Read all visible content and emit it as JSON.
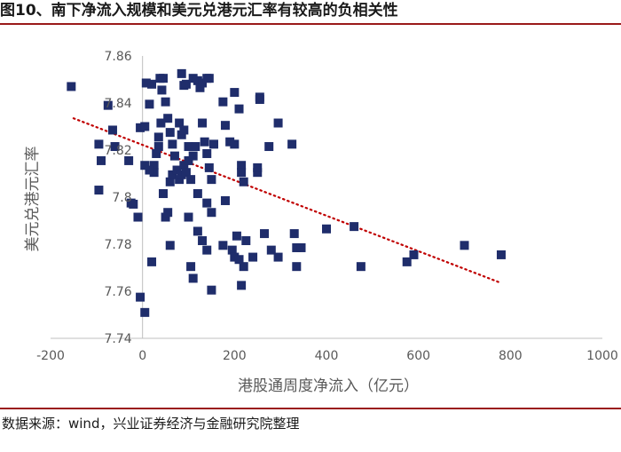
{
  "title": "图10、南下净流入规模和美元兑港元汇率有较高的负相关性",
  "source": "数据来源：wind，兴业证券经济与金融研究院整理",
  "colors": {
    "marker": "#1f2d6b",
    "trend": "#c00000",
    "axis": "#bfbfbf",
    "accent": "#9a1a1a"
  },
  "chart_data": {
    "type": "scatter",
    "xlabel": "港股通周度净流入（亿元）",
    "ylabel": "美元兑港元汇率",
    "xlim": [
      -200,
      1000
    ],
    "ylim": [
      7.74,
      7.86
    ],
    "x_ticks": [
      "-200",
      "0",
      "200",
      "400",
      "600",
      "800",
      "1000"
    ],
    "y_ticks": [
      "7.74",
      "7.76",
      "7.78",
      "7.8",
      "7.82",
      "7.84",
      "7.86"
    ],
    "trendline": {
      "style": "dotted",
      "x": [
        -150,
        780
      ],
      "y": [
        7.8335,
        7.7635
      ]
    },
    "points": [
      [
        -155,
        7.847
      ],
      [
        -95,
        7.8225
      ],
      [
        -90,
        7.8155
      ],
      [
        -75,
        7.839
      ],
      [
        -65,
        7.8285
      ],
      [
        -60,
        7.8215
      ],
      [
        -30,
        7.8155
      ],
      [
        -95,
        7.803
      ],
      [
        -25,
        7.7975
      ],
      [
        -20,
        7.797
      ],
      [
        -10,
        7.7915
      ],
      [
        -5,
        7.7575
      ],
      [
        5,
        7.751
      ],
      [
        -5,
        7.8295
      ],
      [
        5,
        7.83
      ],
      [
        8,
        7.8485
      ],
      [
        15,
        7.8395
      ],
      [
        20,
        7.848
      ],
      [
        25,
        7.8135
      ],
      [
        35,
        7.8255
      ],
      [
        38,
        7.8505
      ],
      [
        42,
        7.8455
      ],
      [
        45,
        7.8505
      ],
      [
        50,
        7.8405
      ],
      [
        55,
        7.8335
      ],
      [
        60,
        7.8275
      ],
      [
        65,
        7.8225
      ],
      [
        70,
        7.8175
      ],
      [
        40,
        7.8315
      ],
      [
        35,
        7.8215
      ],
      [
        30,
        7.8185
      ],
      [
        25,
        7.8105
      ],
      [
        15,
        7.8115
      ],
      [
        5,
        7.8135
      ],
      [
        45,
        7.8015
      ],
      [
        50,
        7.7915
      ],
      [
        55,
        7.7935
      ],
      [
        60,
        7.8065
      ],
      [
        65,
        7.8095
      ],
      [
        75,
        7.8115
      ],
      [
        80,
        7.8075
      ],
      [
        85,
        7.8095
      ],
      [
        90,
        7.8135
      ],
      [
        95,
        7.8105
      ],
      [
        100,
        7.8155
      ],
      [
        105,
        7.8075
      ],
      [
        110,
        7.8175
      ],
      [
        115,
        7.8215
      ],
      [
        85,
        7.8525
      ],
      [
        90,
        7.8475
      ],
      [
        95,
        7.848
      ],
      [
        110,
        7.8505
      ],
      [
        120,
        7.8495
      ],
      [
        125,
        7.8465
      ],
      [
        130,
        7.8485
      ],
      [
        140,
        7.8505
      ],
      [
        145,
        7.8505
      ],
      [
        80,
        7.8315
      ],
      [
        85,
        7.8265
      ],
      [
        90,
        7.8285
      ],
      [
        100,
        7.8215
      ],
      [
        130,
        7.8315
      ],
      [
        135,
        7.8235
      ],
      [
        140,
        7.8185
      ],
      [
        145,
        7.8125
      ],
      [
        150,
        7.8075
      ],
      [
        155,
        7.8225
      ],
      [
        175,
        7.8405
      ],
      [
        180,
        7.8305
      ],
      [
        190,
        7.8235
      ],
      [
        200,
        7.8225
      ],
      [
        210,
        7.8375
      ],
      [
        200,
        7.8445
      ],
      [
        215,
        7.8135
      ],
      [
        215,
        7.8105
      ],
      [
        220,
        7.8065
      ],
      [
        250,
        7.8105
      ],
      [
        250,
        7.8125
      ],
      [
        255,
        7.8415
      ],
      [
        255,
        7.8425
      ],
      [
        275,
        7.8215
      ],
      [
        295,
        7.8315
      ],
      [
        325,
        7.8225
      ],
      [
        120,
        7.8015
      ],
      [
        140,
        7.7975
      ],
      [
        150,
        7.7935
      ],
      [
        180,
        7.7985
      ],
      [
        205,
        7.7835
      ],
      [
        225,
        7.7815
      ],
      [
        240,
        7.7745
      ],
      [
        265,
        7.7845
      ],
      [
        280,
        7.7775
      ],
      [
        295,
        7.7745
      ],
      [
        330,
        7.7845
      ],
      [
        335,
        7.7785
      ],
      [
        345,
        7.7785
      ],
      [
        100,
        7.7915
      ],
      [
        120,
        7.7855
      ],
      [
        130,
        7.7815
      ],
      [
        140,
        7.7775
      ],
      [
        175,
        7.7795
      ],
      [
        195,
        7.7775
      ],
      [
        200,
        7.7745
      ],
      [
        210,
        7.7735
      ],
      [
        220,
        7.7705
      ],
      [
        60,
        7.7795
      ],
      [
        20,
        7.7725
      ],
      [
        105,
        7.7705
      ],
      [
        110,
        7.7655
      ],
      [
        150,
        7.7605
      ],
      [
        215,
        7.7625
      ],
      [
        335,
        7.7705
      ],
      [
        400,
        7.7865
      ],
      [
        460,
        7.7875
      ],
      [
        475,
        7.7705
      ],
      [
        575,
        7.7725
      ],
      [
        590,
        7.7755
      ],
      [
        700,
        7.7795
      ],
      [
        780,
        7.7755
      ]
    ]
  }
}
